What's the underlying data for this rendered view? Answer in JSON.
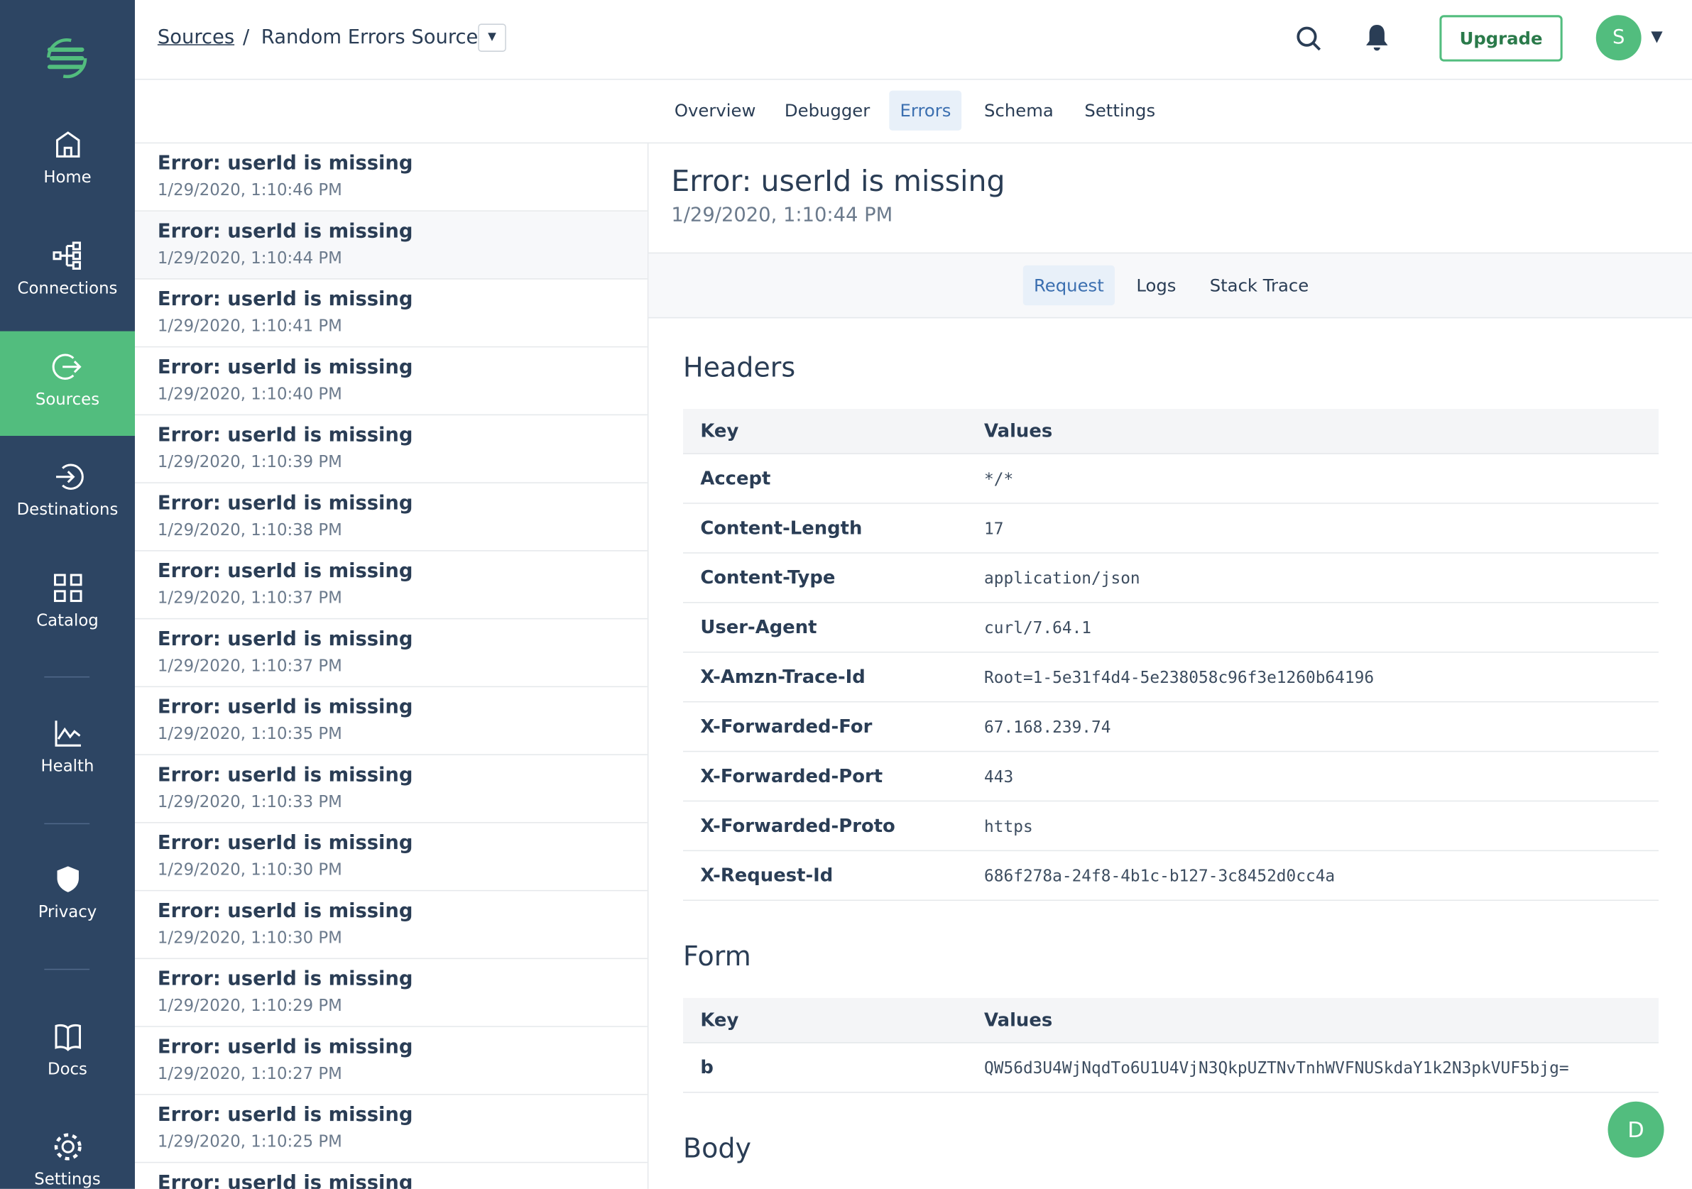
{
  "nav": [
    "Home",
    "Connections",
    "Sources",
    "Destinations",
    "Catalog",
    "Health",
    "Privacy",
    "Docs",
    "Settings"
  ],
  "breadcrumb": {
    "parent": "Sources",
    "current": "Random Errors Source"
  },
  "upgrade": "Upgrade",
  "avatar": "S",
  "help": "D",
  "tabs": [
    "Overview",
    "Debugger",
    "Errors",
    "Schema",
    "Settings"
  ],
  "errors": [
    {
      "title": "Error: userId is missing",
      "time": "1/29/2020, 1:10:46 PM"
    },
    {
      "title": "Error: userId is missing",
      "time": "1/29/2020, 1:10:44 PM"
    },
    {
      "title": "Error: userId is missing",
      "time": "1/29/2020, 1:10:41 PM"
    },
    {
      "title": "Error: userId is missing",
      "time": "1/29/2020, 1:10:40 PM"
    },
    {
      "title": "Error: userId is missing",
      "time": "1/29/2020, 1:10:39 PM"
    },
    {
      "title": "Error: userId is missing",
      "time": "1/29/2020, 1:10:38 PM"
    },
    {
      "title": "Error: userId is missing",
      "time": "1/29/2020, 1:10:37 PM"
    },
    {
      "title": "Error: userId is missing",
      "time": "1/29/2020, 1:10:37 PM"
    },
    {
      "title": "Error: userId is missing",
      "time": "1/29/2020, 1:10:35 PM"
    },
    {
      "title": "Error: userId is missing",
      "time": "1/29/2020, 1:10:33 PM"
    },
    {
      "title": "Error: userId is missing",
      "time": "1/29/2020, 1:10:30 PM"
    },
    {
      "title": "Error: userId is missing",
      "time": "1/29/2020, 1:10:30 PM"
    },
    {
      "title": "Error: userId is missing",
      "time": "1/29/2020, 1:10:29 PM"
    },
    {
      "title": "Error: userId is missing",
      "time": "1/29/2020, 1:10:27 PM"
    },
    {
      "title": "Error: userId is missing",
      "time": "1/29/2020, 1:10:25 PM"
    },
    {
      "title": "Error: userId is missing"
    }
  ],
  "detail": {
    "title": "Error: userId is missing",
    "time": "1/29/2020, 1:10:44 PM",
    "subtabs": [
      "Request",
      "Logs",
      "Stack Trace"
    ],
    "headers": {
      "title": "Headers",
      "columns": [
        "Key",
        "Values"
      ],
      "rows": [
        [
          "Accept",
          "*/*"
        ],
        [
          "Content-Length",
          "17"
        ],
        [
          "Content-Type",
          "application/json"
        ],
        [
          "User-Agent",
          "curl/7.64.1"
        ],
        [
          "X-Amzn-Trace-Id",
          "Root=1-5e31f4d4-5e238058c96f3e1260b64196"
        ],
        [
          "X-Forwarded-For",
          "67.168.239.74"
        ],
        [
          "X-Forwarded-Port",
          "443"
        ],
        [
          "X-Forwarded-Proto",
          "https"
        ],
        [
          "X-Request-Id",
          "686f278a-24f8-4b1c-b127-3c8452d0cc4a"
        ]
      ]
    },
    "form": {
      "title": "Form",
      "columns": [
        "Key",
        "Values"
      ],
      "rows": [
        [
          "b",
          "QW56d3U4WjNqdTo6U1U4VjN3QkpUZTNvTnhWVFNUSkdaY1k2N3pkVUF5bjg="
        ]
      ]
    },
    "body_title": "Body"
  }
}
